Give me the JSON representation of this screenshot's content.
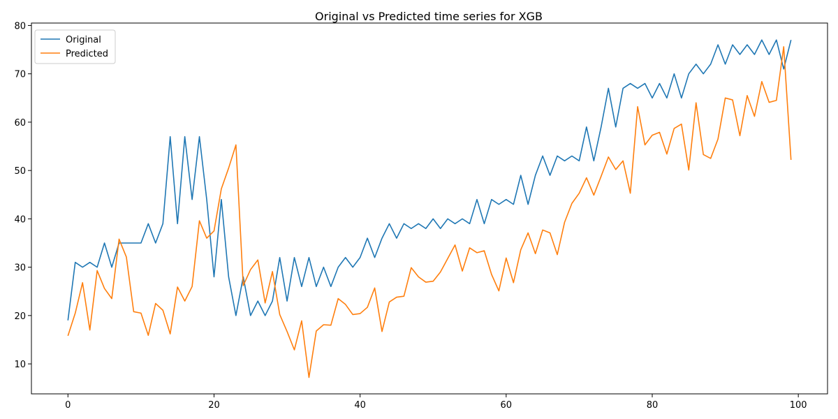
{
  "chart_data": {
    "type": "line",
    "title": "Original vs Predicted time series for XGB",
    "xlabel": "",
    "ylabel": "",
    "xlim": [
      -5,
      104
    ],
    "ylim": [
      3.8,
      80.5
    ],
    "x_ticks": [
      0,
      20,
      40,
      60,
      80,
      100
    ],
    "y_ticks": [
      10,
      20,
      30,
      40,
      50,
      60,
      70,
      80
    ],
    "grid": false,
    "legend_position": "top-left",
    "x": [
      0,
      1,
      2,
      3,
      4,
      5,
      6,
      7,
      8,
      9,
      10,
      11,
      12,
      13,
      14,
      15,
      16,
      17,
      18,
      19,
      20,
      21,
      22,
      23,
      24,
      25,
      26,
      27,
      28,
      29,
      30,
      31,
      32,
      33,
      34,
      35,
      36,
      37,
      38,
      39,
      40,
      41,
      42,
      43,
      44,
      45,
      46,
      47,
      48,
      49,
      50,
      51,
      52,
      53,
      54,
      55,
      56,
      57,
      58,
      59,
      60,
      61,
      62,
      63,
      64,
      65,
      66,
      67,
      68,
      69,
      70,
      71,
      72,
      73,
      74,
      75,
      76,
      77,
      78,
      79,
      80,
      81,
      82,
      83,
      84,
      85,
      86,
      87,
      88,
      89,
      90,
      91,
      92,
      93,
      94,
      95,
      96,
      97,
      98,
      99
    ],
    "series": [
      {
        "name": "Original",
        "color": "#1f77b4",
        "values": [
          19,
          31,
          30,
          31,
          30,
          35,
          30,
          35,
          35,
          35,
          35,
          39,
          35,
          39,
          57,
          39,
          57,
          44,
          57,
          44,
          28,
          44,
          28,
          20,
          28,
          20,
          23,
          20,
          23,
          32,
          23,
          32,
          26,
          32,
          26,
          30,
          26,
          30,
          32,
          30,
          32,
          36,
          32,
          36,
          39,
          36,
          39,
          38,
          39,
          38,
          40,
          38,
          40,
          39,
          40,
          39,
          44,
          39,
          44,
          43,
          44,
          43,
          49,
          43,
          49,
          53,
          49,
          53,
          52,
          53,
          52,
          59,
          52,
          59,
          67,
          59,
          67,
          68,
          67,
          68,
          65,
          68,
          65,
          70,
          65,
          70,
          72,
          70,
          72,
          76,
          72,
          76,
          74,
          76,
          74,
          77,
          74,
          77,
          71,
          77
        ]
      },
      {
        "name": "Predicted",
        "color": "#ff7f0e",
        "values": [
          15.8,
          20.5,
          26.8,
          17,
          29.3,
          25.6,
          23.5,
          35.8,
          32.1,
          20.8,
          20.5,
          15.9,
          22.5,
          21.1,
          16.2,
          25.9,
          23,
          26,
          39.6,
          36,
          37.5,
          46.2,
          50.5,
          55.3,
          26.2,
          29.5,
          31.5,
          22.6,
          29.1,
          20.2,
          16.7,
          12.9,
          18.9,
          7.2,
          16.8,
          18.1,
          18,
          23.5,
          22.3,
          20.2,
          20.4,
          21.7,
          25.7,
          16.7,
          22.8,
          23.8,
          24,
          29.9,
          28,
          26.9,
          27.1,
          29,
          31.8,
          34.6,
          29.2,
          34,
          33,
          33.4,
          28.5,
          25.1,
          31.9,
          26.8,
          33.6,
          37.1,
          32.8,
          37.7,
          37.1,
          32.6,
          39.3,
          43.2,
          45.3,
          48.5,
          44.9,
          48.8,
          52.8,
          50.2,
          52,
          45.3,
          63.2,
          55.3,
          57.3,
          57.9,
          53.4,
          58.7,
          59.6,
          50.1,
          64,
          53.3,
          52.5,
          56.5,
          65,
          64.6,
          57.2,
          65.5,
          61.2,
          68.4,
          64.1,
          64.5,
          75.6,
          52.2
        ]
      }
    ]
  }
}
